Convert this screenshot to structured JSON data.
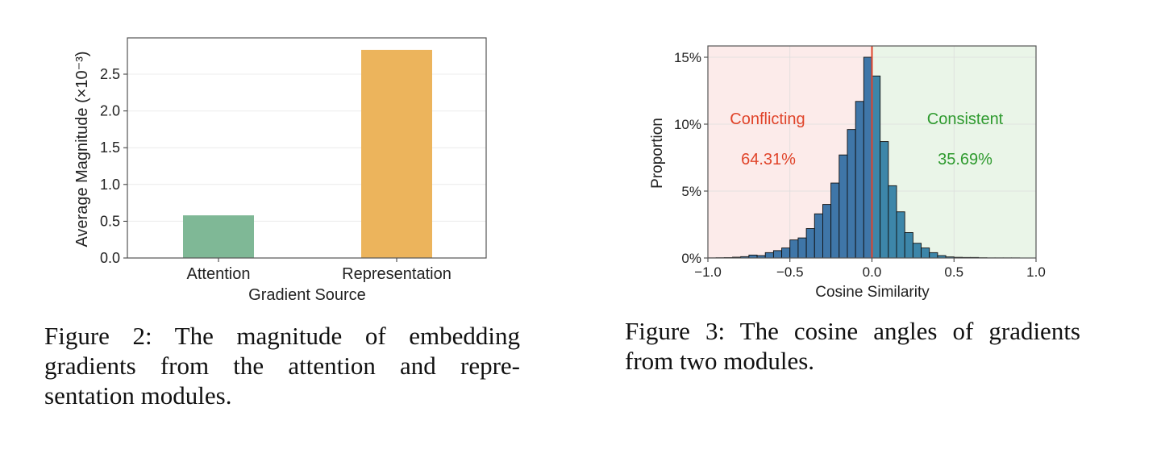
{
  "chart_data": [
    {
      "type": "bar",
      "categories": [
        "Attention",
        "Representation"
      ],
      "values": [
        0.58,
        2.83
      ],
      "colors": [
        "#7fb896",
        "#ecb45c"
      ],
      "xlabel": "Gradient Source",
      "ylabel": "Average Magnitude (×10⁻³)",
      "ylim": [
        0,
        3.0
      ],
      "yticks": [
        "0.0",
        "0.5",
        "1.0",
        "1.5",
        "2.0",
        "2.5"
      ],
      "grid": "y"
    },
    {
      "type": "bar",
      "subtype": "histogram",
      "bin_width": 0.05,
      "bin_starts": [
        -1.0,
        -0.95,
        -0.9,
        -0.85,
        -0.8,
        -0.75,
        -0.7,
        -0.65,
        -0.6,
        -0.55,
        -0.5,
        -0.45,
        -0.4,
        -0.35,
        -0.3,
        -0.25,
        -0.2,
        -0.15,
        -0.1,
        -0.05,
        0.0,
        0.05,
        0.1,
        0.15,
        0.2,
        0.25,
        0.3,
        0.35,
        0.4,
        0.45,
        0.5,
        0.55,
        0.6,
        0.65,
        0.7,
        0.75,
        0.8,
        0.85,
        0.9,
        0.95
      ],
      "values": [
        0.01,
        0.02,
        0.03,
        0.06,
        0.1,
        0.22,
        0.18,
        0.4,
        0.55,
        0.75,
        1.35,
        1.5,
        2.2,
        3.3,
        4.0,
        5.6,
        7.7,
        9.6,
        11.7,
        15.0,
        13.6,
        8.7,
        5.4,
        3.45,
        1.9,
        1.1,
        0.75,
        0.4,
        0.18,
        0.08,
        0.05,
        0.04,
        0.04,
        0.02,
        0.01,
        0.01,
        0.01,
        0.01,
        0.0,
        0.0
      ],
      "xlabel": "Cosine Similarity",
      "ylabel": "Proportion",
      "xlim": [
        -1.0,
        1.0
      ],
      "ylim": [
        0,
        15.8
      ],
      "xticks": [
        "−1.0",
        "−0.5",
        "0.0",
        "0.5",
        "1.0"
      ],
      "yticks": [
        "0%",
        "5%",
        "10%",
        "15%"
      ],
      "divider_x": 0.0,
      "regions": {
        "left": {
          "label": "Conflicting",
          "value": "64.31%",
          "color": "#e0442a",
          "bg": "#fcebea"
        },
        "right": {
          "label": "Consistent",
          "value": "35.69%",
          "color": "#2e9a2e",
          "bg": "#eaf5e8"
        }
      },
      "bar_color": "#3f76a8",
      "grid": "both"
    }
  ],
  "captions": {
    "fig2": [
      "Figure 2: The magnitude of embedding",
      "gradients from the attention and repre-",
      "sentation modules."
    ],
    "fig3": [
      "Figure 3: The cosine angles of gradients",
      "from two modules."
    ]
  }
}
